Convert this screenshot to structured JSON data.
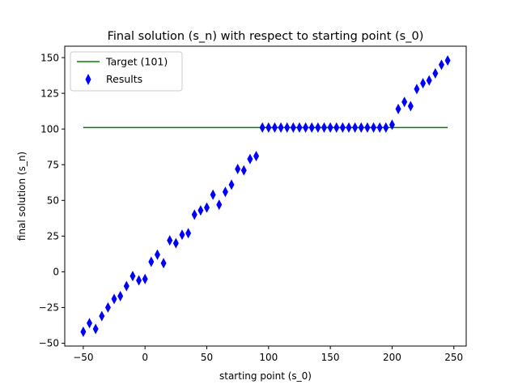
{
  "chart_data": {
    "type": "scatter",
    "title": "Final solution (s_n) with respect to starting point (s_0)",
    "xlabel": "starting point (s_0)",
    "ylabel": "final solution (s_n)",
    "xlim": [
      -65,
      260
    ],
    "ylim": [
      -52,
      158
    ],
    "xticks": [
      -50,
      0,
      50,
      100,
      150,
      200,
      250
    ],
    "yticks": [
      -50,
      -25,
      0,
      25,
      50,
      75,
      100,
      125,
      150
    ],
    "grid": false,
    "legend_position": "upper-left",
    "target_line": {
      "name": "Target (101)",
      "color": "#008000",
      "x": [
        -50,
        245
      ],
      "y": 101
    },
    "series": [
      {
        "name": "Results",
        "color": "#0000ff",
        "marker": "thin-diamond",
        "x": [
          -50,
          -45,
          -40,
          -35,
          -30,
          -25,
          -20,
          -15,
          -10,
          -5,
          0,
          5,
          10,
          15,
          20,
          25,
          30,
          35,
          40,
          45,
          50,
          55,
          60,
          65,
          70,
          75,
          80,
          85,
          90,
          95,
          100,
          105,
          110,
          115,
          120,
          125,
          130,
          135,
          140,
          145,
          150,
          155,
          160,
          165,
          170,
          175,
          180,
          185,
          190,
          195,
          200,
          205,
          210,
          215,
          220,
          225,
          230,
          235,
          240,
          245
        ],
        "y": [
          -42,
          -36,
          -40,
          -31,
          -25,
          -19,
          -17,
          -10,
          -3,
          -6,
          -5,
          7,
          12,
          6,
          22,
          20,
          26,
          27,
          40,
          43,
          45,
          54,
          47,
          56,
          61,
          72,
          71,
          79,
          81,
          101,
          101,
          101,
          101,
          101,
          101,
          101,
          101,
          101,
          101,
          101,
          101,
          101,
          101,
          101,
          101,
          101,
          101,
          101,
          101,
          101,
          103,
          114,
          119,
          116,
          128,
          132,
          134,
          139,
          145,
          148
        ]
      }
    ]
  }
}
